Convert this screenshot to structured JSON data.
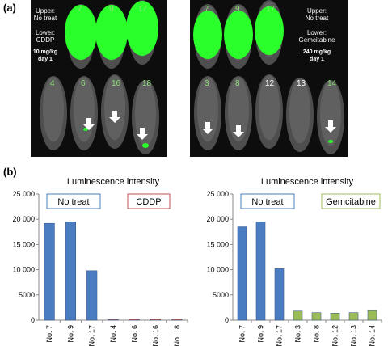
{
  "panel_a": {
    "label": "(a)",
    "left": {
      "upper_numbers": [
        "7",
        "9",
        "17"
      ],
      "lower_numbers": [
        "4",
        "6",
        "16",
        "18"
      ],
      "legend_lines": [
        "Upper:",
        "No treat",
        "",
        "Lower:",
        "CDDP"
      ],
      "dose_lines": [
        "10 mg/kg",
        "day 1"
      ]
    },
    "right": {
      "upper_numbers": [
        "7",
        "9",
        "17"
      ],
      "lower_numbers": [
        "3",
        "8",
        "12",
        "13",
        "14"
      ],
      "legend_lines": [
        "Upper:",
        "No treat",
        "",
        "Lower:",
        "Gemcitabine"
      ],
      "dose_lines": [
        "240 mg/kg",
        "day 1"
      ]
    },
    "colors": {
      "signal": "#2bff2b",
      "number": "#8fe07a",
      "arrow": "#ffffff"
    }
  },
  "panel_b": {
    "label": "(b)"
  },
  "chart_data": [
    {
      "type": "bar",
      "title": "Luminescence intensity",
      "categories": [
        "No. 7",
        "No. 9",
        "No. 17",
        "No. 4",
        "No. 6",
        "No. 16",
        "No. 18"
      ],
      "values": [
        19200,
        19500,
        9800,
        150,
        200,
        250,
        250
      ],
      "bar_colors": [
        "#4a7cc2",
        "#4a7cc2",
        "#4a7cc2",
        "#c0504d",
        "#c0504d",
        "#c0504d",
        "#c0504d"
      ],
      "ylim": [
        0,
        25000
      ],
      "yticks": [
        0,
        5000,
        10000,
        15000,
        20000,
        25000
      ],
      "ytick_labels": [
        "0",
        "5000",
        "10 000",
        "15 000",
        "20 000",
        "25 000"
      ],
      "legend": [
        {
          "label": "No treat",
          "border": "#4a7cc2"
        },
        {
          "label": "CDDP",
          "border": "#c0504d"
        }
      ]
    },
    {
      "type": "bar",
      "title": "Luminescence intensity",
      "categories": [
        "No. 7",
        "No. 9",
        "No. 17",
        "No. 3",
        "No. 8",
        "No. 12",
        "No. 13",
        "No. 14"
      ],
      "values": [
        18500,
        19500,
        10200,
        1800,
        1500,
        1400,
        1500,
        1900
      ],
      "bar_colors": [
        "#4a7cc2",
        "#4a7cc2",
        "#4a7cc2",
        "#9bbb59",
        "#9bbb59",
        "#9bbb59",
        "#9bbb59",
        "#9bbb59"
      ],
      "ylim": [
        0,
        25000
      ],
      "yticks": [
        0,
        5000,
        10000,
        15000,
        20000,
        25000
      ],
      "ytick_labels": [
        "0",
        "5000",
        "10 000",
        "15 000",
        "20 000",
        "25 000"
      ],
      "legend": [
        {
          "label": "No treat",
          "border": "#4a7cc2"
        },
        {
          "label": "Gemcitabine",
          "border": "#9bbb59"
        }
      ]
    }
  ]
}
